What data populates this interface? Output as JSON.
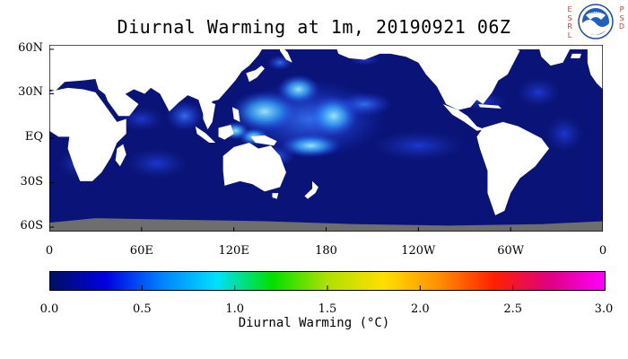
{
  "title": "Diurnal Warming at 1m, 20190921 06Z",
  "logo": {
    "left_letters": [
      "E",
      "S",
      "R",
      "L"
    ],
    "right_letters": [
      "P",
      "S",
      "D"
    ],
    "emblem_text": "NOAA",
    "icon": "noaa-emblem-icon"
  },
  "map": {
    "lon_range_deg_east": [
      0,
      360
    ],
    "lat_range": [
      -63,
      63
    ],
    "lat_ticks": [
      {
        "value": 60,
        "label": "60N"
      },
      {
        "value": 30,
        "label": "30N"
      },
      {
        "value": 0,
        "label": "EQ"
      },
      {
        "value": -30,
        "label": "30S"
      },
      {
        "value": -60,
        "label": "60S"
      }
    ],
    "lon_ticks": [
      {
        "value": 0,
        "label": "0"
      },
      {
        "value": 60,
        "label": "60E"
      },
      {
        "value": 120,
        "label": "120E"
      },
      {
        "value": 180,
        "label": "180"
      },
      {
        "value": 240,
        "label": "120W"
      },
      {
        "value": 300,
        "label": "60W"
      },
      {
        "value": 360,
        "label": "0"
      }
    ],
    "colors": {
      "ocean_base": "#0a1478",
      "land": "#ffffff",
      "sea_ice": "#6e6e6e",
      "warm_low": "#1e3cf0",
      "warm_mid": "#3aa8ff",
      "warm_high": "#9ff0ff"
    }
  },
  "colorbar": {
    "range": [
      0.0,
      3.0
    ],
    "stops": [
      "#001060",
      "#0000e0",
      "#0080ff",
      "#00e0ff",
      "#00e000",
      "#b0e000",
      "#ffe000",
      "#ff9000",
      "#ff2000",
      "#e00080",
      "#ff00ff"
    ],
    "ticks": [
      {
        "value": 0.0,
        "label": "0.0"
      },
      {
        "value": 0.5,
        "label": "0.5"
      },
      {
        "value": 1.0,
        "label": "1.0"
      },
      {
        "value": 1.5,
        "label": "1.5"
      },
      {
        "value": 2.0,
        "label": "2.0"
      },
      {
        "value": 2.5,
        "label": "2.5"
      },
      {
        "value": 3.0,
        "label": "3.0"
      }
    ],
    "label": "Diurnal Warming (°C)"
  }
}
